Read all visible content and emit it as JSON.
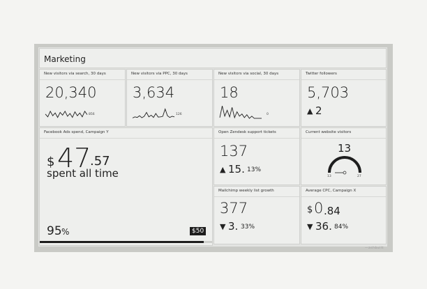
{
  "dashboard": {
    "title": "Marketing",
    "brand": "—ashbuilt"
  },
  "search": {
    "label": "New visitors via search, 30 days",
    "value": "20,340",
    "spark_max": "856",
    "spark": [
      0.45,
      0.2,
      0.7,
      0.3,
      0.55,
      0.15,
      0.6,
      0.35,
      0.7,
      0.25,
      0.5,
      0.15,
      0.65,
      0.3,
      0.55,
      0.2,
      0.7,
      0.4
    ]
  },
  "ppc": {
    "label": "New visitors via PPC, 30 days",
    "value": "3,634",
    "spark_max": "126",
    "spark": [
      0.1,
      0.2,
      0.15,
      0.3,
      0.12,
      0.25,
      0.6,
      0.2,
      0.35,
      0.15,
      0.5,
      0.18,
      0.2,
      0.25,
      0.9,
      0.3,
      0.15,
      0.25,
      0.2
    ]
  },
  "social": {
    "label": "New visitors via social, 30 days",
    "value": "18",
    "spark_max": "0",
    "spark": [
      0.1,
      0.9,
      0.2,
      0.6,
      0.15,
      0.8,
      0.1,
      0.5,
      0.2,
      0.35,
      0.1,
      0.3,
      0.05,
      0.2,
      0.05,
      0.05,
      0.05,
      0.05
    ]
  },
  "twitter": {
    "label": "Twitter followers",
    "value": "5,703",
    "change": "2",
    "arrow": "▲"
  },
  "facebook": {
    "label": "Facebook Ads spend, Campaign Y",
    "currency": "$",
    "int": "47",
    "dec": ".57",
    "subtitle": "spent all time",
    "percent": "95",
    "percent_sign": "%",
    "budget": "$50",
    "progress": 0.95
  },
  "zendesk": {
    "label": "Open Zendesk support tickets",
    "value": "137",
    "arrow": "▲",
    "change": "15.",
    "change_dec": "13%"
  },
  "visitors": {
    "label": "Current website visitors",
    "value": "13",
    "min": "13",
    "max": "27",
    "level": 0.0
  },
  "mailchimp": {
    "label": "Mailchimp weekly list growth",
    "value": "377",
    "arrow": "▼",
    "change": "3.",
    "change_dec": "33%"
  },
  "cpc": {
    "label": "Average CPC, Campaign X",
    "currency": "$",
    "int": "0",
    "dec": ".84",
    "arrow": "▼",
    "change": "36.",
    "change_dec": "84%"
  }
}
